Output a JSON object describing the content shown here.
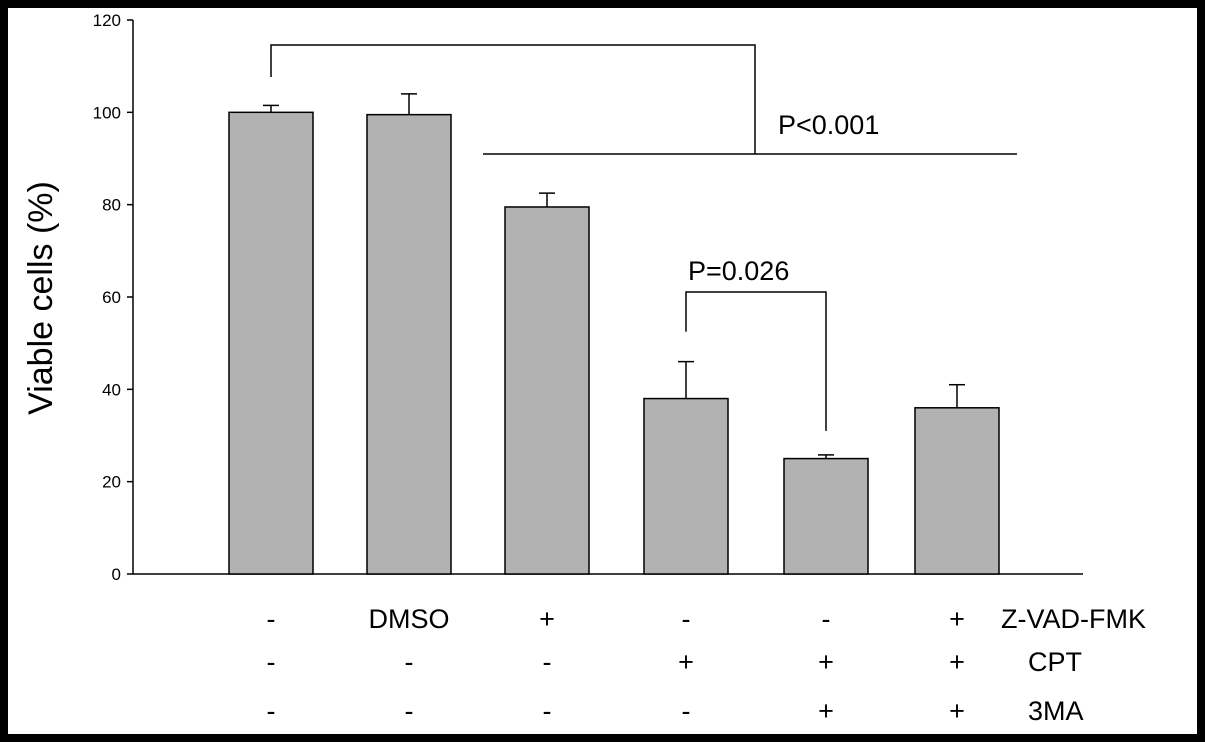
{
  "chart_data": {
    "type": "bar",
    "ylabel": "Viable cells (%)",
    "ylim": [
      0,
      120
    ],
    "yticks": [
      0,
      20,
      40,
      60,
      80,
      100,
      120
    ],
    "grid": false,
    "bar_color": "#b2b2b2",
    "values": [
      100,
      99.5,
      79.5,
      38,
      25,
      36
    ],
    "errors": [
      1.5,
      4.5,
      3,
      8,
      0.8,
      5
    ],
    "treatment_rows": [
      {
        "name": "Z-VAD-FMK",
        "marks": [
          "-",
          "DMSO",
          "+",
          "-",
          "-",
          "+"
        ]
      },
      {
        "name": "CPT",
        "marks": [
          "-",
          "-",
          "-",
          "+",
          "+",
          "+"
        ]
      },
      {
        "name": "3MA",
        "marks": [
          "-",
          "-",
          "-",
          "-",
          "+",
          "+"
        ]
      }
    ],
    "significance": [
      {
        "label": "P<0.001",
        "from": 0,
        "to": [
          2,
          3,
          4,
          5
        ]
      },
      {
        "label": "P=0.026",
        "from": 3,
        "to": [
          4
        ]
      }
    ]
  }
}
